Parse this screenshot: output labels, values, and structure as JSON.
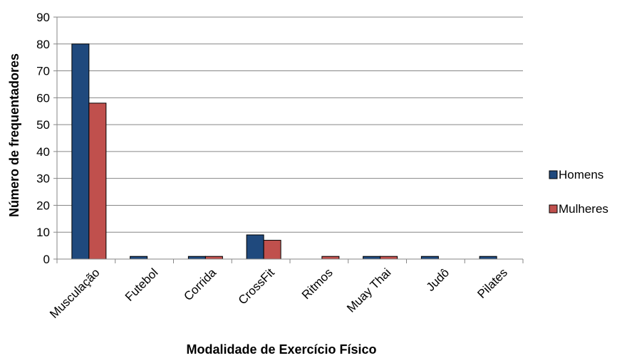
{
  "chart_data": {
    "type": "bar",
    "title": "",
    "xlabel": "Modalidade de Exercício Físico",
    "ylabel": "Número de frequentadores",
    "ylim": [
      0,
      90
    ],
    "yticks": [
      0,
      10,
      20,
      30,
      40,
      50,
      60,
      70,
      80,
      90
    ],
    "grid": true,
    "legend_position": "right",
    "categories": [
      "Musculação",
      "Futebol",
      "Corrida",
      "CrossFit",
      "Ritmos",
      "Muay Thai",
      "Judô",
      "Pilates"
    ],
    "series": [
      {
        "name": "Homens",
        "color": "#1f497d",
        "values": [
          80,
          1,
          1,
          9,
          0,
          1,
          1,
          1
        ]
      },
      {
        "name": "Mulheres",
        "color": "#c0504d",
        "values": [
          58,
          0,
          1,
          7,
          1,
          1,
          0,
          0
        ]
      }
    ]
  }
}
